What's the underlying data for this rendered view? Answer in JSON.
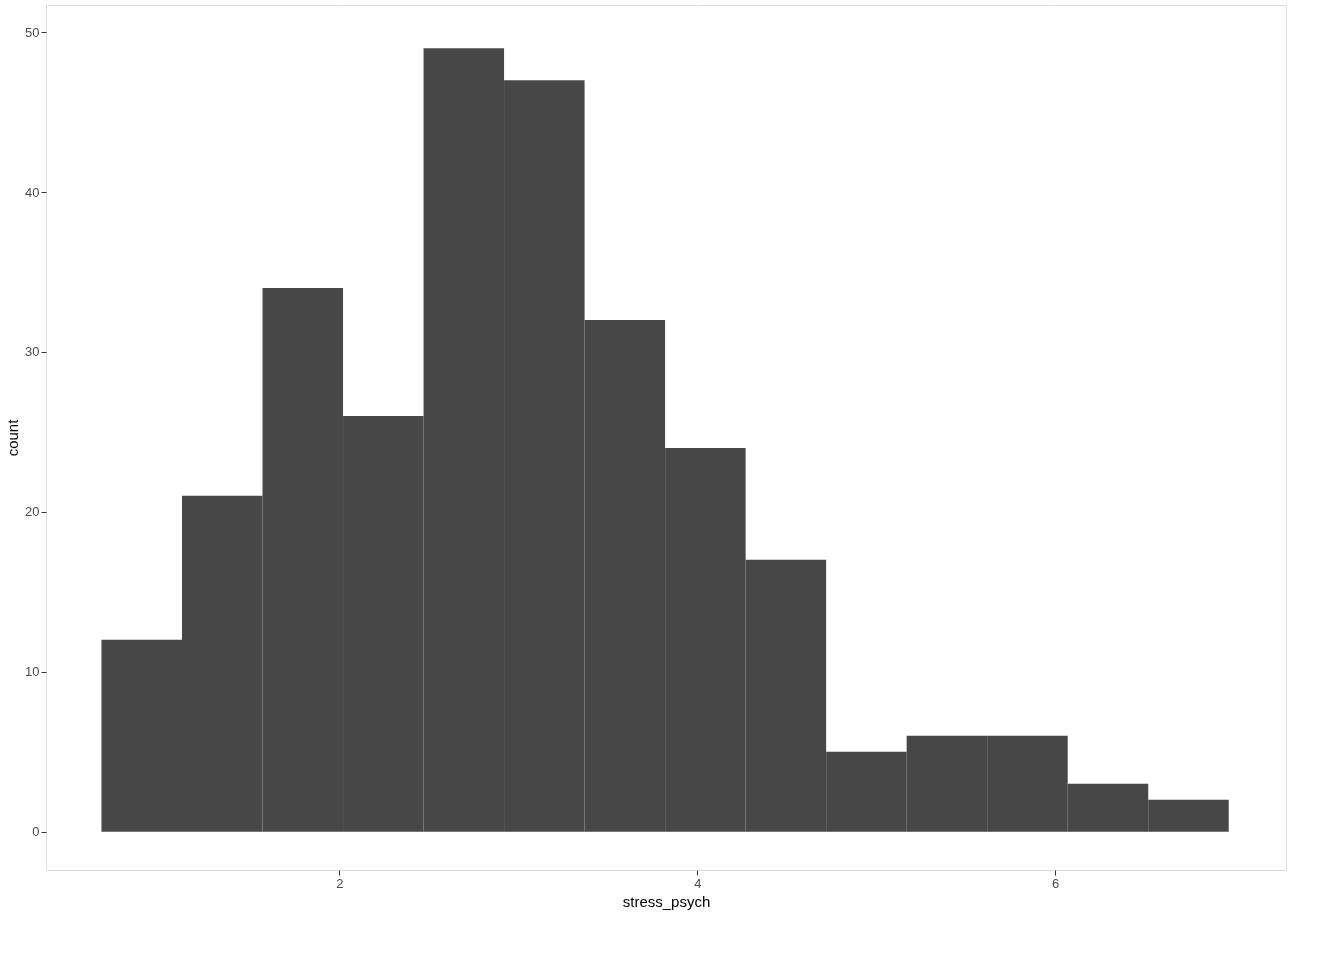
{
  "chart_data": {
    "type": "histogram",
    "xlabel": "stress_psych",
    "ylabel": "count",
    "bins": [
      0.67,
      1.12,
      1.57,
      2.02,
      2.47,
      2.92,
      3.37,
      3.82,
      4.27,
      4.72,
      5.17,
      5.62,
      6.07,
      6.52,
      6.97
    ],
    "values": [
      12,
      21,
      34,
      26,
      49,
      47,
      32,
      24,
      17,
      5,
      6,
      6,
      3,
      2
    ],
    "color": "#474747",
    "xlim": [
      0.36,
      7.29
    ],
    "xticks": [
      2,
      4,
      6
    ],
    "ylim": [
      -2.4,
      51.7
    ],
    "yticks": [
      0,
      10,
      20,
      30,
      40,
      50
    ],
    "grid": true
  }
}
